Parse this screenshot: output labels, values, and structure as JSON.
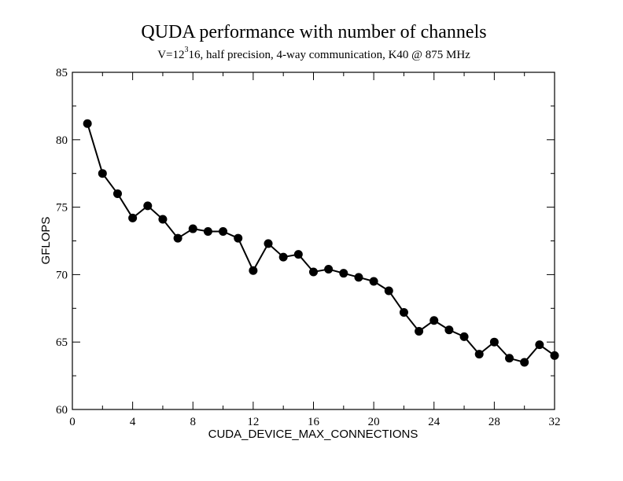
{
  "chart_data": {
    "type": "line",
    "title": "QUDA performance with number of channels",
    "subtitle": {
      "prefix": "V=12",
      "superscript": "3",
      "suffix": "16, half precision, 4-way communication, K40 @ 875 MHz"
    },
    "xlabel": "CUDA_DEVICE_MAX_CONNECTIONS",
    "ylabel": "GFLOPS",
    "xlim": [
      0,
      32
    ],
    "ylim": [
      60,
      85
    ],
    "xticks": [
      0,
      4,
      8,
      12,
      16,
      20,
      24,
      28,
      32
    ],
    "yticks": [
      60,
      65,
      70,
      75,
      80,
      85
    ],
    "grid": false,
    "series": [
      {
        "color": "#000000",
        "marker": "circle",
        "x": [
          1,
          2,
          3,
          4,
          5,
          6,
          7,
          8,
          9,
          10,
          11,
          12,
          13,
          14,
          15,
          16,
          17,
          18,
          19,
          20,
          21,
          22,
          23,
          24,
          25,
          26,
          27,
          28,
          29,
          30,
          31,
          32
        ],
        "values": [
          81.2,
          77.5,
          76.0,
          74.2,
          75.1,
          74.1,
          72.7,
          73.4,
          73.2,
          73.2,
          72.7,
          70.3,
          72.3,
          71.3,
          71.5,
          70.2,
          70.4,
          70.1,
          69.8,
          69.5,
          68.8,
          67.2,
          65.8,
          66.6,
          65.9,
          65.4,
          64.1,
          65.0,
          63.8,
          63.5,
          64.8,
          64.0
        ]
      }
    ]
  }
}
